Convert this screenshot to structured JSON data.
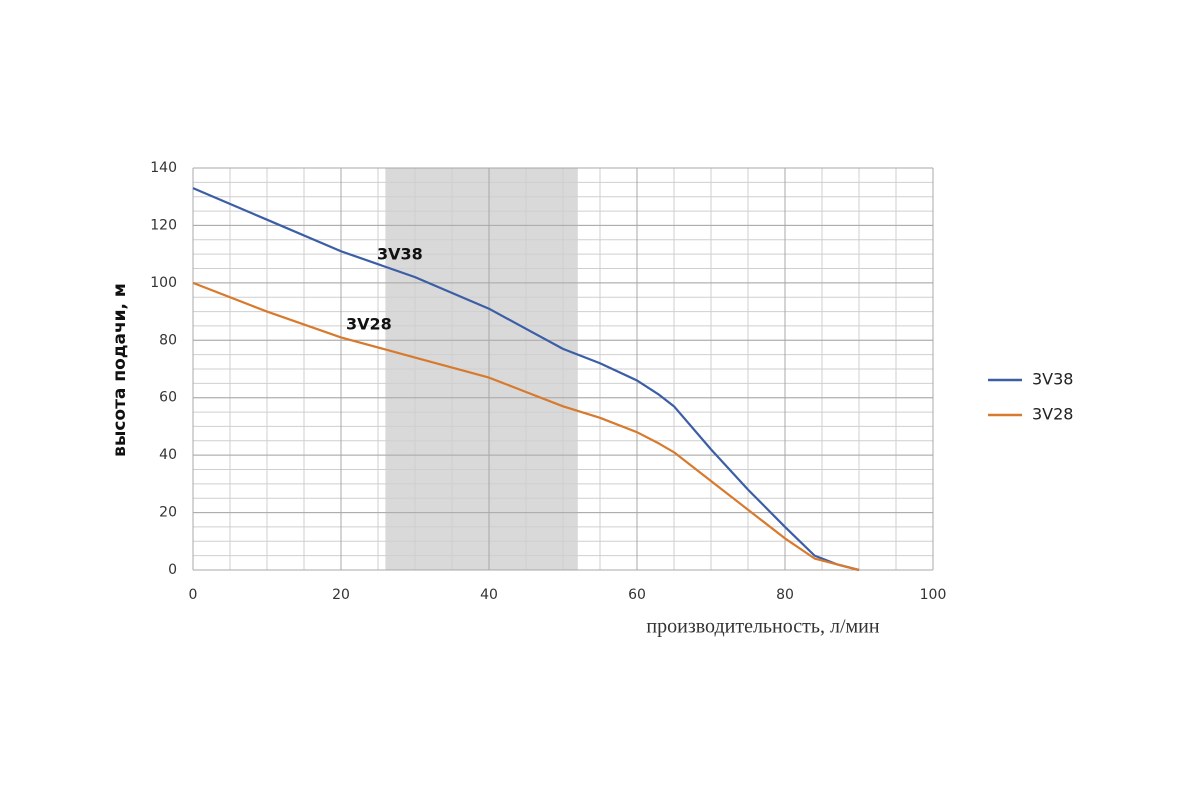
{
  "chart_data": {
    "type": "line",
    "x_label": "производительность, л/мин",
    "y_label": "высота подачи, м",
    "x": [
      0,
      10,
      20,
      30,
      40,
      45,
      50,
      55,
      60,
      63,
      65,
      70,
      75,
      80,
      84,
      87,
      90
    ],
    "series": [
      {
        "name": "3V38",
        "color": "#3b5ea6",
        "values": [
          133,
          122,
          111,
          102,
          91,
          84,
          77,
          72,
          66,
          61,
          57,
          42,
          28,
          15,
          5,
          2,
          0
        ]
      },
      {
        "name": "3V28",
        "color": "#d87a2e",
        "values": [
          100,
          90,
          81,
          74,
          67,
          62,
          57,
          53,
          48,
          44,
          41,
          31,
          21,
          11,
          4,
          2,
          0
        ]
      }
    ],
    "shaded_range": [
      26,
      52
    ],
    "xlim": [
      0,
      100
    ],
    "xticks": [
      0,
      20,
      40,
      60,
      80,
      100
    ],
    "ylim": [
      0,
      140
    ],
    "yticks": [
      0,
      20,
      40,
      60,
      80,
      100,
      120,
      140
    ],
    "grid": true,
    "minor_grid": 5,
    "legend": "right"
  }
}
